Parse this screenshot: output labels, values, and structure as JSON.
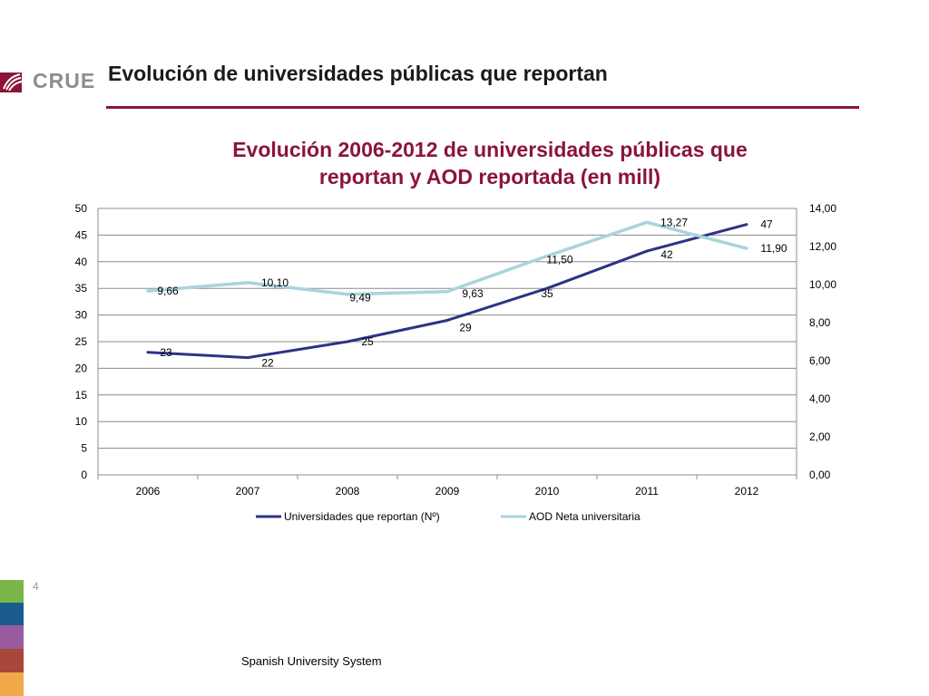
{
  "header": {
    "logo_text": "CRUE",
    "title": "Evolución de universidades públicas que reportan"
  },
  "footer": {
    "page_number": "4",
    "caption": "Spanish University System"
  },
  "colors": {
    "accent": "#8b1538",
    "series_universities": "#2e3287",
    "series_aod": "#a9d4dc",
    "sidebar": [
      "#7ab648",
      "#1b5c8e",
      "#9a5a9e",
      "#a8473a",
      "#f0a848"
    ]
  },
  "chart_data": {
    "type": "line",
    "title_line1": "Evolución 2006-2012 de universidades públicas que",
    "title_line2": "reportan y AOD reportada (en mill)",
    "categories": [
      "2006",
      "2007",
      "2008",
      "2009",
      "2010",
      "2011",
      "2012"
    ],
    "y_left": {
      "range": [
        0,
        50
      ],
      "ticks": [
        "0",
        "5",
        "10",
        "15",
        "20",
        "25",
        "30",
        "35",
        "40",
        "45",
        "50"
      ]
    },
    "y_right": {
      "range": [
        0,
        14
      ],
      "ticks": [
        "0,00",
        "2,00",
        "4,00",
        "6,00",
        "8,00",
        "10,00",
        "12,00",
        "14,00"
      ]
    },
    "grid": true,
    "legend_position": "bottom",
    "series": [
      {
        "name": "Universidades que reportan (Nº)",
        "axis": "left",
        "values": [
          23,
          22,
          25,
          29,
          35,
          42,
          47
        ],
        "labels": [
          "23",
          "22",
          "25",
          "29",
          "35",
          "42",
          "47"
        ]
      },
      {
        "name": "AOD Neta universitaria",
        "axis": "right",
        "values": [
          9.66,
          10.1,
          9.49,
          9.63,
          11.5,
          13.27,
          11.9
        ],
        "labels": [
          "9,66",
          "10,10",
          "9,49",
          "9,63",
          "11,50",
          "13,27",
          "11,90"
        ]
      }
    ]
  }
}
